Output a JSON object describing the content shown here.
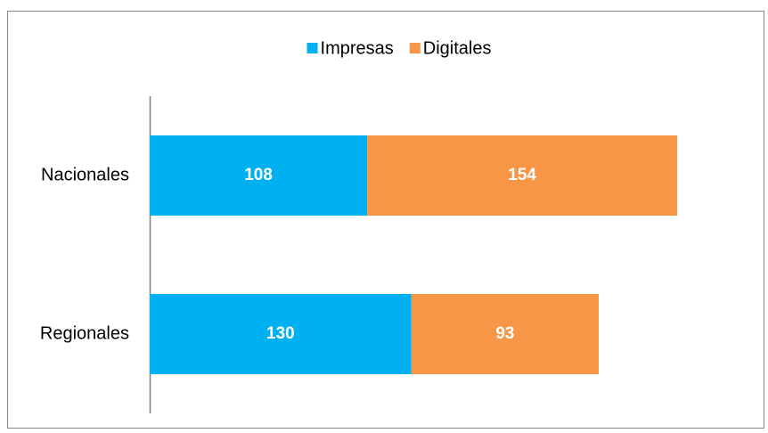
{
  "chart_data": {
    "type": "stacked_barh",
    "categories": [
      "Nacionales",
      "Regionales"
    ],
    "series": [
      {
        "name": "Impresas",
        "color": "#00b0f0",
        "values": [
          108,
          130
        ]
      },
      {
        "name": "Digitales",
        "color": "#f79646",
        "values": [
          154,
          93
        ]
      }
    ],
    "xlim": [
      0,
      300
    ],
    "legend": "top"
  }
}
